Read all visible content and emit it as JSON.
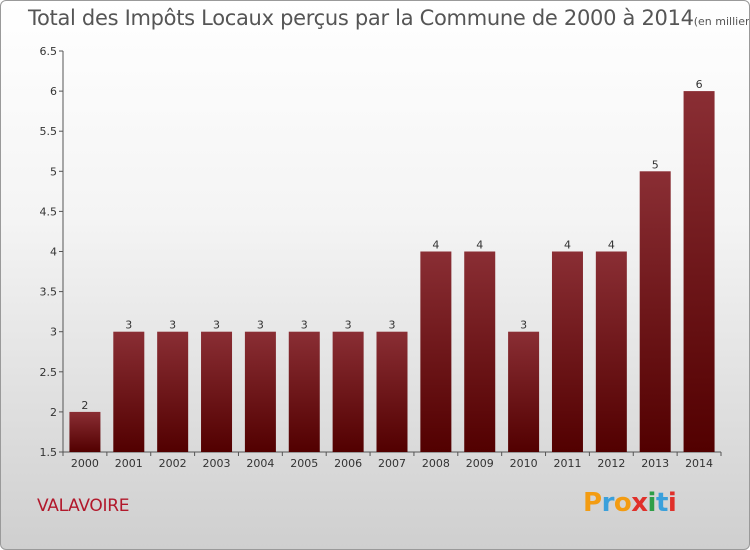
{
  "title": {
    "main": "Total des Impôts Locaux perçus par la Commune de 2000 à 2014",
    "unit": "(en milliers d'€)"
  },
  "commune": "VALAVOIRE",
  "logo": {
    "letters": [
      "P",
      "r",
      "o",
      "x",
      "i",
      "t",
      "i"
    ],
    "colors": [
      "#f39c12",
      "#3aa0db",
      "#f39c12",
      "#e0302a",
      "#2e9e48",
      "#3aa0db",
      "#e0302a"
    ]
  },
  "colors": {
    "bar_top": "#8a2e34",
    "bar_bottom": "#520000",
    "axis": "#555555"
  },
  "chart_data": {
    "type": "bar",
    "categories": [
      "2000",
      "2001",
      "2002",
      "2003",
      "2004",
      "2005",
      "2006",
      "2007",
      "2008",
      "2009",
      "2010",
      "2011",
      "2012",
      "2013",
      "2014"
    ],
    "values": [
      2,
      3,
      3,
      3,
      3,
      3,
      3,
      3,
      4,
      4,
      3,
      4,
      4,
      5,
      6
    ],
    "data_labels": [
      "2",
      "3",
      "3",
      "3",
      "3",
      "3",
      "3",
      "3",
      "4",
      "4",
      "3",
      "4",
      "4",
      "5",
      "6"
    ],
    "yticks": [
      "1.5",
      "2",
      "2.5",
      "3",
      "3.5",
      "4",
      "4.5",
      "5",
      "5.5",
      "6",
      "6.5"
    ],
    "ylim": [
      1.5,
      6.5
    ],
    "grid": false,
    "xlabel": "",
    "ylabel": ""
  }
}
